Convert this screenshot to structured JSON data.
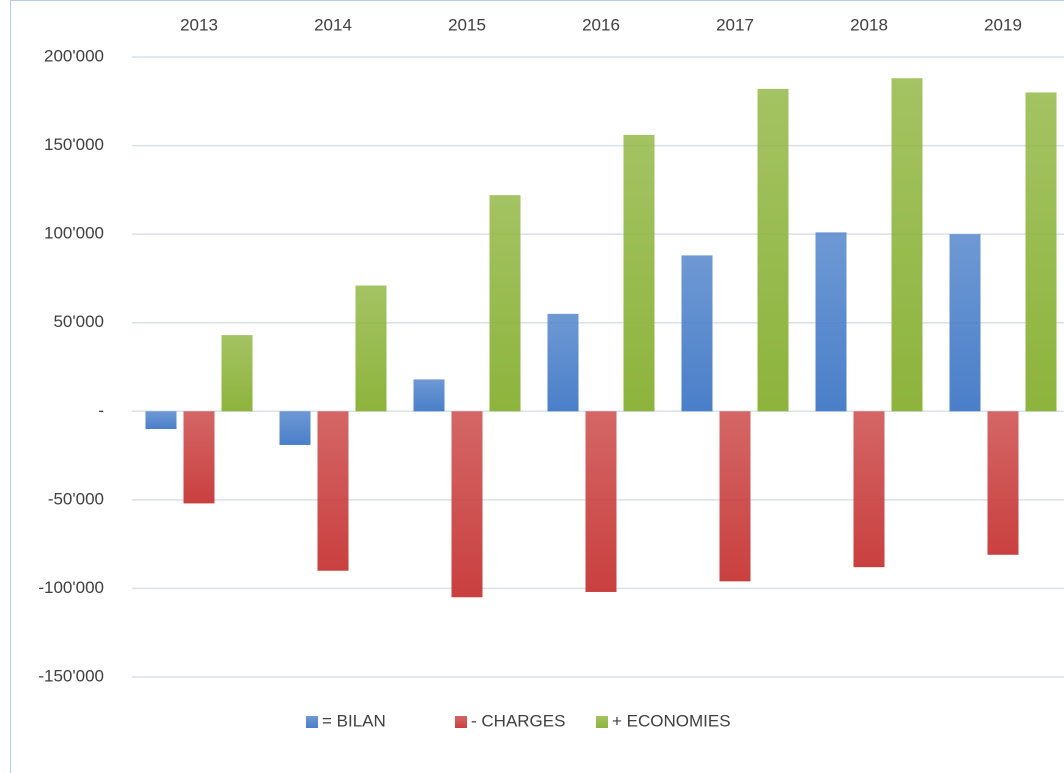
{
  "chart_data": {
    "type": "bar",
    "categories": [
      "2013",
      "2014",
      "2015",
      "2016",
      "2017",
      "2018",
      "2019"
    ],
    "series": [
      {
        "name": "= BILAN",
        "color": "#4a7fc9",
        "values": [
          -10000,
          -19000,
          18000,
          55000,
          88000,
          101000,
          100000
        ]
      },
      {
        "name": "- CHARGES",
        "color": "#c9403f",
        "values": [
          -52000,
          -90000,
          -105000,
          -102000,
          -96000,
          -88000,
          -81000
        ]
      },
      {
        "name": "+ ECONOMIES",
        "color": "#8db43c",
        "values": [
          43000,
          71000,
          122000,
          156000,
          182000,
          188000,
          180000
        ]
      }
    ],
    "ylim": [
      -150000,
      200000
    ],
    "yticks": [
      {
        "value": -150000,
        "label": "-150'000"
      },
      {
        "value": -100000,
        "label": "-100'000"
      },
      {
        "value": -50000,
        "label": "-50'000"
      },
      {
        "value": 0,
        "label": "-"
      },
      {
        "value": 50000,
        "label": "50'000"
      },
      {
        "value": 100000,
        "label": "100'000"
      },
      {
        "value": 150000,
        "label": "150'000"
      },
      {
        "value": 200000,
        "label": "200'000"
      }
    ],
    "grid": true,
    "legend": "bottom"
  }
}
